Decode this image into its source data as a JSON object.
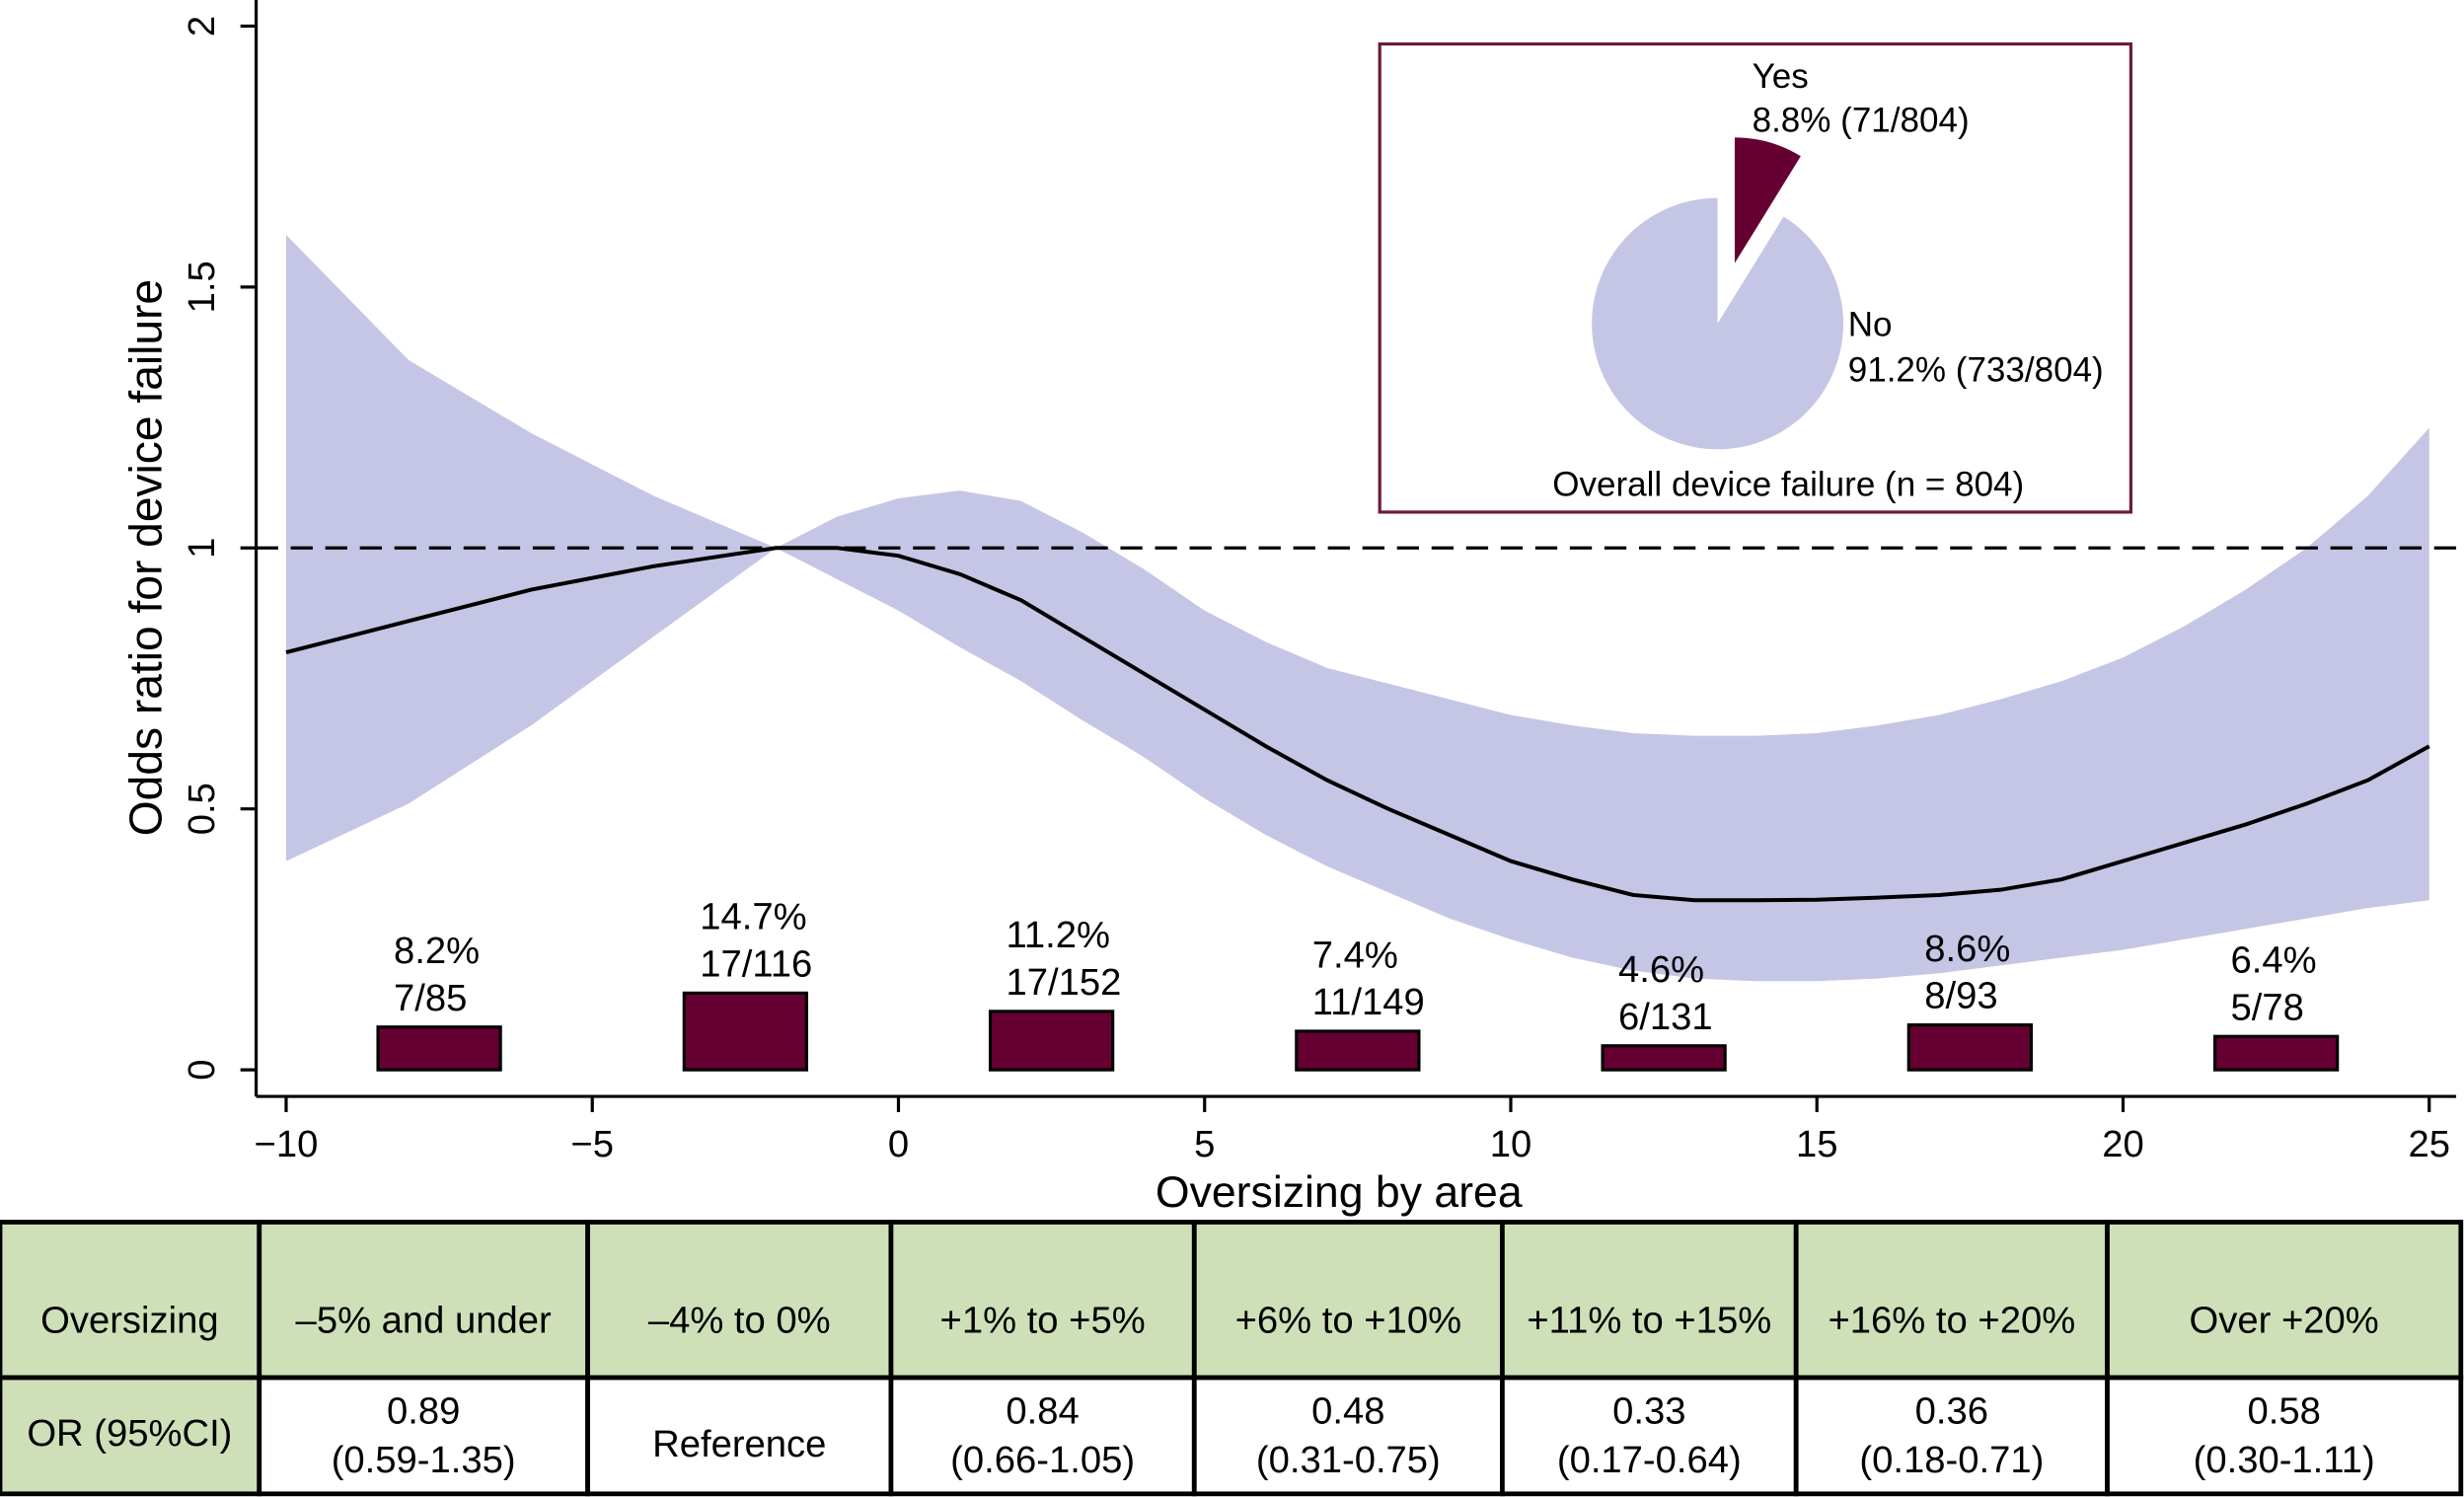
{
  "chart_data": [
    {
      "type": "line",
      "x_label": "Oversizing by area",
      "y_label": "Odds ratio for device failure",
      "xlim": [
        -10.49,
        25.44
      ],
      "ylim": [
        -0.051,
        2.05
      ],
      "xticks": [
        {
          "value": -10,
          "label": "−10"
        },
        {
          "value": -5,
          "label": "−5"
        },
        0,
        5,
        10,
        15,
        20,
        25
      ],
      "yticks": [
        0,
        0.5,
        1,
        1.5,
        2
      ],
      "x": [
        -10,
        -8,
        -6,
        -4,
        -2,
        -1,
        0,
        1,
        2,
        3,
        4,
        5,
        6,
        7,
        8,
        9,
        10,
        11,
        12,
        13,
        14,
        15,
        16,
        17,
        18,
        19,
        20,
        21,
        22,
        23,
        24,
        25
      ],
      "values": [
        0.8,
        0.86,
        0.92,
        0.965,
        1.0,
        1.0,
        0.985,
        0.95,
        0.9,
        0.83,
        0.76,
        0.69,
        0.62,
        0.555,
        0.5,
        0.45,
        0.4,
        0.365,
        0.335,
        0.325,
        0.325,
        0.326,
        0.33,
        0.335,
        0.345,
        0.365,
        0.4,
        0.435,
        0.47,
        0.51,
        0.555,
        0.62
      ],
      "ci_upper": [
        1.6,
        1.36,
        1.22,
        1.1,
        1.0,
        1.06,
        1.095,
        1.11,
        1.09,
        1.03,
        0.96,
        0.88,
        0.82,
        0.77,
        0.74,
        0.71,
        0.68,
        0.66,
        0.645,
        0.64,
        0.64,
        0.645,
        0.66,
        0.68,
        0.71,
        0.745,
        0.79,
        0.85,
        0.92,
        1.0,
        1.1,
        1.23
      ],
      "ci_lower": [
        0.4,
        0.51,
        0.66,
        0.83,
        1.0,
        0.94,
        0.88,
        0.81,
        0.745,
        0.67,
        0.6,
        0.52,
        0.45,
        0.39,
        0.34,
        0.29,
        0.25,
        0.215,
        0.19,
        0.175,
        0.17,
        0.17,
        0.175,
        0.185,
        0.2,
        0.215,
        0.23,
        0.25,
        0.27,
        0.29,
        0.31,
        0.325
      ],
      "color": "#000000",
      "band_color": "#c5c5e6",
      "reference_line": 1,
      "bars": {
        "x": [
          -7.5,
          -2.5,
          2.5,
          7.5,
          12.5,
          17.5,
          22.5
        ],
        "values": [
          0.082,
          0.147,
          0.112,
          0.074,
          0.046,
          0.086,
          0.064
        ],
        "value_labels": [
          "8.2%",
          "14.7%",
          "11.2%",
          "7.4%",
          "4.6%",
          "8.6%",
          "6.4%"
        ],
        "counts": [
          "7/85",
          "17/116",
          "17/152",
          "11/149",
          "6/131",
          "8/93",
          "5/78"
        ],
        "color": "#660033"
      }
    },
    {
      "type": "pie",
      "title": "Overall device failure (n = 804)",
      "categories": [
        "Yes",
        "No"
      ],
      "values": [
        8.8,
        91.2
      ],
      "value_labels": [
        "8.8% (71/804)",
        "91.2% (733/804)"
      ],
      "colors": [
        "#660033",
        "#c5c5e6"
      ]
    }
  ],
  "table": {
    "header": [
      "Oversizing",
      "–5% and under",
      "–4% to 0%",
      "+1% to +5%",
      "+6% to +10%",
      "+11% to +15%",
      "+16% to +20%",
      "Over +20%"
    ],
    "row": {
      "label": "OR (95%CI)",
      "cells": [
        [
          "0.89",
          "(0.59-1.35)"
        ],
        [
          "Reference"
        ],
        [
          "0.84",
          "(0.66-1.05)"
        ],
        [
          "0.48",
          "(0.31-0.75)"
        ],
        [
          "0.33",
          "(0.17-0.64)"
        ],
        [
          "0.36",
          "(0.18-0.71)"
        ],
        [
          "0.58",
          "(0.30-1.11)"
        ]
      ]
    }
  }
}
